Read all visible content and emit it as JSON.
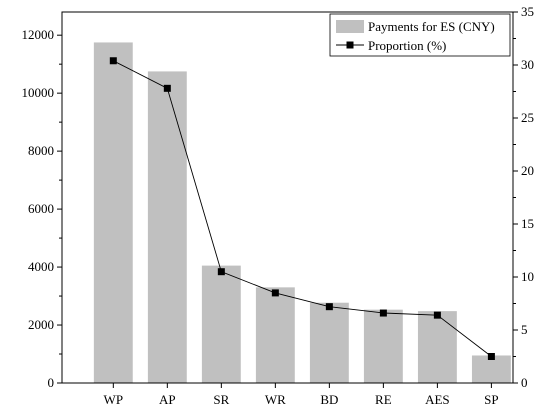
{
  "chart_data": {
    "type": "bar",
    "title": "",
    "xlabel": "",
    "ylabel": "",
    "y2label": "",
    "categories": [
      "WP",
      "AP",
      "SR",
      "WR",
      "BD",
      "RE",
      "AES",
      "SP"
    ],
    "series": [
      {
        "name": "Payments for ES (CNY)",
        "type": "bar",
        "axis": "left",
        "color": "#c0c0c0",
        "values": [
          11750,
          10750,
          4050,
          3300,
          2770,
          2530,
          2480,
          950
        ]
      },
      {
        "name": "Proportion (%)",
        "type": "line",
        "axis": "right",
        "color": "#000000",
        "marker": "square",
        "values": [
          30.4,
          27.8,
          10.5,
          8.5,
          7.2,
          6.6,
          6.4,
          2.5
        ]
      }
    ],
    "ylim": [
      0,
      12800
    ],
    "y_ticks": [
      0,
      2000,
      4000,
      6000,
      8000,
      10000,
      12000
    ],
    "y2lim": [
      0,
      35
    ],
    "y2_ticks": [
      0,
      5,
      10,
      15,
      20,
      25,
      30,
      35
    ],
    "grid": false,
    "legend_position": "top-right"
  }
}
